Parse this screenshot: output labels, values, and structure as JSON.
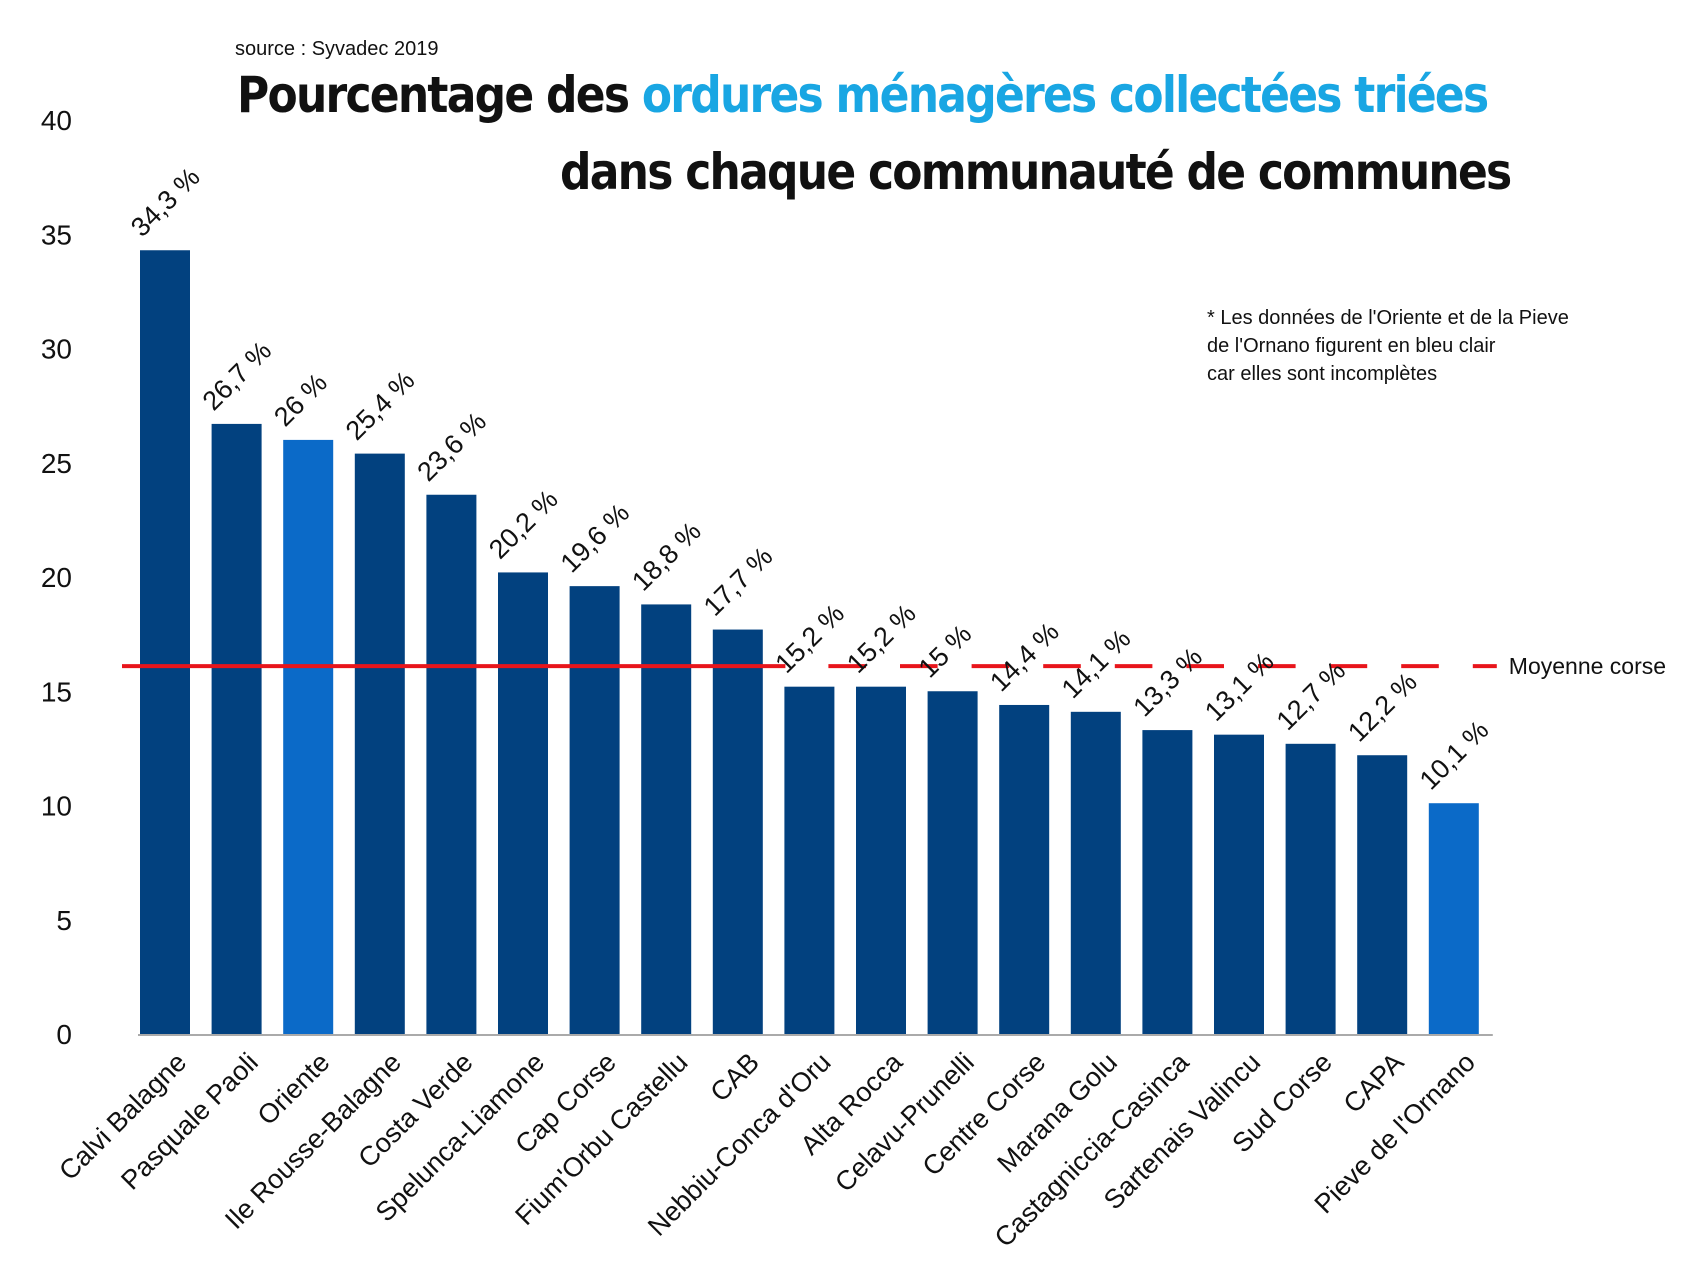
{
  "header": {
    "source": "source : Syvadec 2019",
    "title_part1": "Pourcentage des ",
    "title_highlight": "ordures ménagères collectées triées",
    "title_line2": "dans chaque communauté de communes"
  },
  "note": {
    "line1": "* Les données de l'Oriente et de la Pieve",
    "line2": "de l'Ornano figurent en bleu clair",
    "line3": "car elles sont incomplètes"
  },
  "colors": {
    "bar": "#02417f",
    "bar_incomplete": "#0b6ac8",
    "average_line": "#e8151b",
    "title_highlight": "#19a6e3",
    "axis": "#aaaaaa"
  },
  "chart_data": {
    "type": "bar",
    "categories": [
      "Calvi Balagne",
      "Pasquale Paoli",
      "Oriente",
      "Ile Rousse-Balagne",
      "Costa Verde",
      "Spelunca-Liamone",
      "Cap Corse",
      "Fium'Orbu Castellu",
      "CAB",
      "Nebbiu-Conca d'Oru",
      "Alta Rocca",
      "Celavu-Prunelli",
      "Centre Corse",
      "Marana Golu",
      "Castagniccia-Casinca",
      "Sartenais Valincu",
      "Sud Corse",
      "CAPA",
      "Pieve de l'Ornano"
    ],
    "values": [
      34.3,
      26.7,
      26,
      25.4,
      23.6,
      20.2,
      19.6,
      18.8,
      17.7,
      15.2,
      15.2,
      15,
      14.4,
      14.1,
      13.3,
      13.1,
      12.7,
      12.2,
      10.1
    ],
    "value_labels": [
      "34,3 %",
      "26,7 %",
      "26 %",
      "25,4 %",
      "23,6 %",
      "20,2 %",
      "19,6 %",
      "18,8 %",
      "17,7 %",
      "15,2 %",
      "15,2 %",
      "15 %",
      "14,4 %",
      "14,1 %",
      "13,3 %",
      "13,1 %",
      "12,7 %",
      "12,2 %",
      "10,1 %"
    ],
    "incomplete": [
      false,
      false,
      true,
      false,
      false,
      false,
      false,
      false,
      false,
      false,
      false,
      false,
      false,
      false,
      false,
      false,
      false,
      false,
      true
    ],
    "ylim": [
      0,
      40
    ],
    "yticks": [
      0,
      5,
      10,
      15,
      20,
      25,
      30,
      35,
      40
    ],
    "average": {
      "label": "Moyenne corse",
      "value": 16.1
    },
    "xlabel": "",
    "ylabel": ""
  }
}
